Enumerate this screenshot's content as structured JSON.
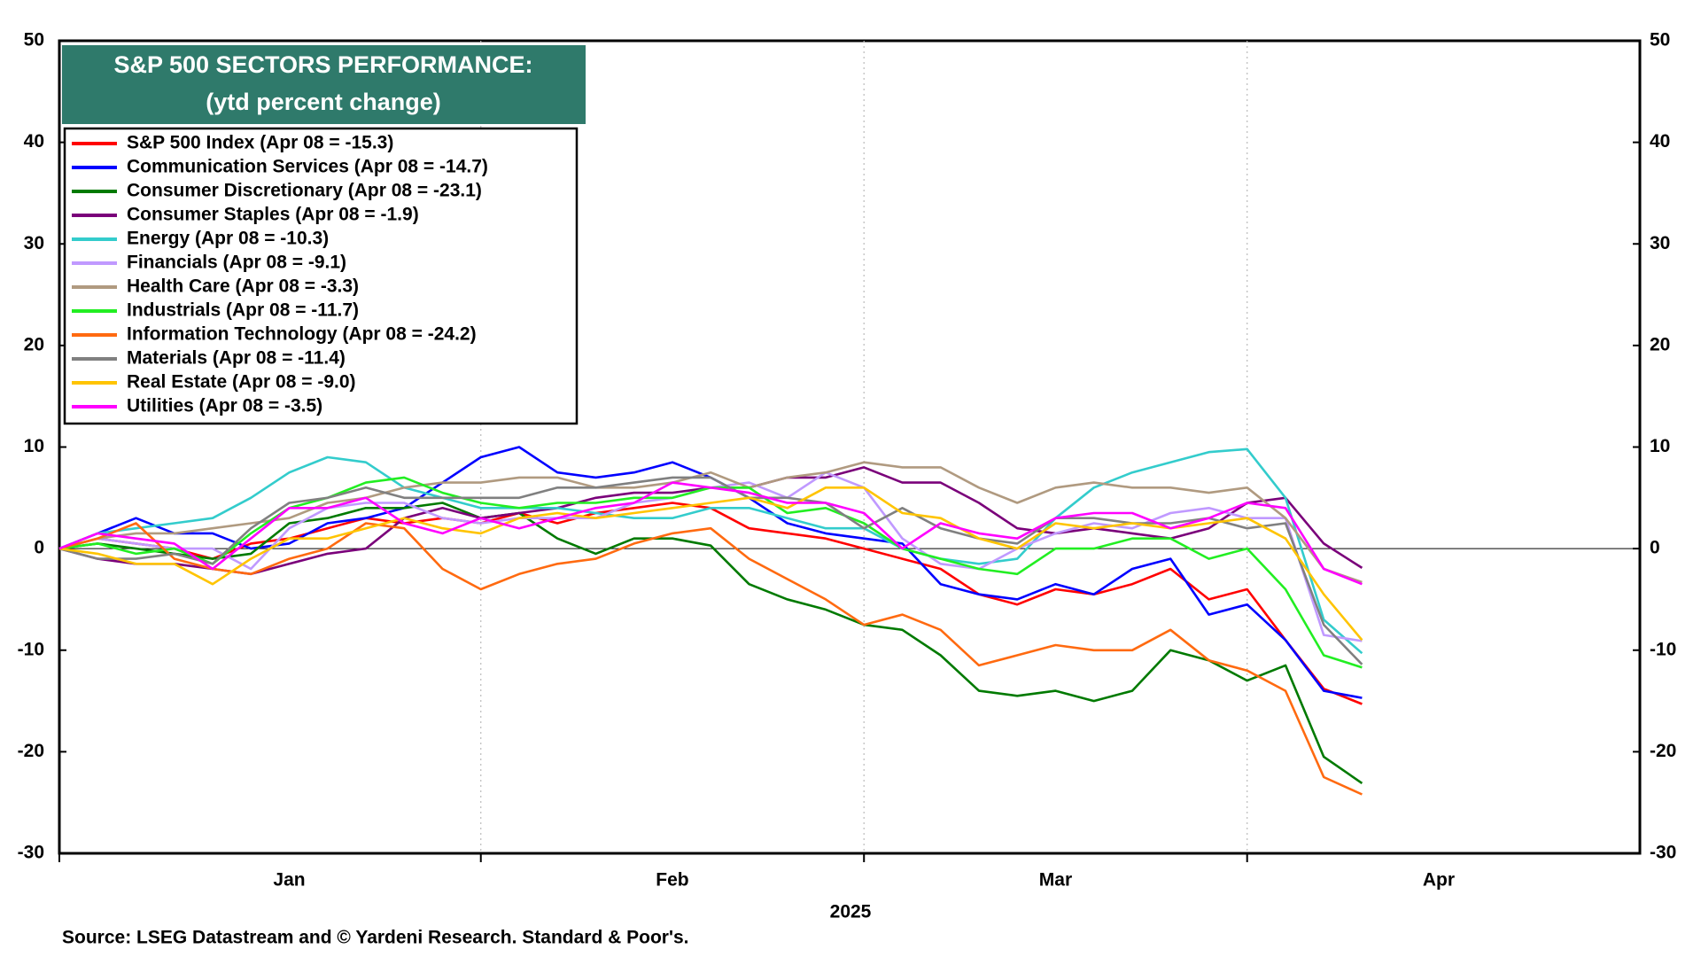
{
  "chart_data": {
    "type": "line",
    "title": "S&P 500 SECTORS PERFORMANCE:",
    "subtitle": "(ytd percent change)",
    "xlabel": "2025",
    "source": "Source: LSEG Datastream and © Yardeni Research. Standard & Poor's.",
    "categories": [
      null,
      null,
      null,
      null,
      null,
      null,
      "Jan",
      null,
      null,
      null,
      null,
      null,
      null,
      null,
      null,
      null,
      "Feb",
      null,
      null,
      null,
      null,
      null,
      null,
      null,
      null,
      null,
      "Mar",
      null,
      null,
      null,
      null,
      null,
      null,
      null,
      null,
      null,
      "Apr",
      null,
      null,
      null,
      null,
      null
    ],
    "ylim": [
      -30,
      50
    ],
    "yticks": [
      -30,
      -20,
      -10,
      0,
      10,
      20,
      30,
      40,
      50
    ],
    "grid": true,
    "series": [
      {
        "name": "S&P 500 Index (Apr 08 = -15.3)",
        "color": "#ff0000",
        "values": [
          0,
          1,
          0.5,
          0,
          -1,
          0.5,
          1,
          2,
          3,
          2.5,
          3,
          2.5,
          3.5,
          2.5,
          3.5,
          4,
          4.5,
          4,
          2,
          1.5,
          1,
          0,
          -1,
          -2,
          -4.5,
          -5.5,
          -4,
          -4.5,
          -3.5,
          -2,
          -5,
          -4,
          -9,
          -13.8,
          -15.3,
          null,
          null,
          null,
          null,
          null,
          null,
          null
        ]
      },
      {
        "name": "Communication Services (Apr 08 = -14.7)",
        "color": "#0000ff",
        "values": [
          0,
          1.5,
          3,
          1.5,
          1.5,
          0,
          0.5,
          2.5,
          3,
          4,
          6.5,
          9,
          10,
          7.5,
          7,
          7.5,
          8.5,
          7,
          5,
          2.5,
          1.5,
          1,
          0.5,
          -3.5,
          -4.5,
          -5,
          -3.5,
          -4.5,
          -2,
          -1,
          -6.5,
          -5.5,
          -9,
          -14,
          -14.7,
          null,
          null,
          null,
          null,
          null,
          null,
          null
        ]
      },
      {
        "name": "Consumer Discretionary (Apr 08 = -23.1)",
        "color": "#007a00",
        "values": [
          0,
          0.5,
          0,
          -0.5,
          -1,
          -0.5,
          2.5,
          3,
          4,
          4,
          4.5,
          3,
          3.5,
          1,
          -0.5,
          1,
          1,
          0.3,
          -3.5,
          -5,
          -6,
          -7.5,
          -8,
          -10.5,
          -14,
          -14.5,
          -14,
          -15,
          -14,
          -10,
          -11,
          -13,
          -11.5,
          -20.5,
          -23.1,
          null,
          null,
          null,
          null,
          null,
          null,
          null
        ]
      },
      {
        "name": "Consumer Staples (Apr 08 = -1.9)",
        "color": "#7a007a",
        "values": [
          0,
          -1,
          -1.5,
          -1.5,
          -2,
          -2.5,
          -1.5,
          -0.5,
          0,
          3,
          4,
          3,
          3.5,
          4,
          5,
          5.5,
          5.5,
          6,
          6,
          7,
          7,
          8,
          6.5,
          6.5,
          4.5,
          2,
          1.5,
          2,
          1.5,
          1,
          2,
          4.5,
          5,
          0.5,
          -1.9,
          null,
          null,
          null,
          null,
          null,
          null,
          null
        ]
      },
      {
        "name": "Energy (Apr 08 = -10.3)",
        "color": "#33cccc",
        "values": [
          0,
          1.5,
          2,
          2.5,
          3,
          5,
          7.5,
          9,
          8.5,
          6,
          5,
          4,
          4,
          4,
          3.5,
          3,
          3,
          4,
          4,
          3,
          2,
          2,
          0,
          -1,
          -1.5,
          -1,
          3,
          6,
          7.5,
          8.5,
          9.5,
          9.8,
          5,
          -7,
          -10.3,
          null,
          null,
          null,
          null,
          null,
          null,
          null
        ]
      },
      {
        "name": "Financials (Apr 08 = -9.1)",
        "color": "#c099ff",
        "values": [
          0,
          1,
          0.5,
          0,
          0,
          -2,
          2,
          4,
          4.5,
          4.5,
          3,
          2.5,
          3,
          3,
          3,
          4.5,
          5,
          6,
          6.5,
          5,
          7.5,
          6,
          1,
          -1.5,
          -2,
          0,
          1.5,
          2.5,
          2,
          3.5,
          4,
          3,
          3,
          -8.5,
          -9.1,
          null,
          null,
          null,
          null,
          null,
          null,
          null
        ]
      },
      {
        "name": "Health Care (Apr 08 = -3.3)",
        "color": "#b09a80",
        "values": [
          0,
          1,
          1.5,
          1.5,
          2,
          2.5,
          3,
          4.5,
          5,
          6,
          6.5,
          6.5,
          7,
          7,
          6,
          6,
          6.5,
          7.5,
          6,
          7,
          7.5,
          8.5,
          8,
          8,
          6,
          4.5,
          6,
          6.5,
          6,
          6,
          5.5,
          6,
          3,
          -2,
          -3.3,
          null,
          null,
          null,
          null,
          null,
          null,
          null
        ]
      },
      {
        "name": "Industrials (Apr 08 = -11.7)",
        "color": "#22ee22",
        "values": [
          0,
          0.5,
          -0.5,
          0,
          -1.5,
          1.5,
          4,
          5,
          6.5,
          7,
          5.5,
          4.5,
          4,
          4.5,
          4.5,
          5,
          5,
          6,
          6,
          3.5,
          4,
          2.5,
          0,
          -1,
          -2,
          -2.5,
          0,
          0,
          1,
          1,
          -1,
          0,
          -4,
          -10.5,
          -11.7,
          null,
          null,
          null,
          null,
          null,
          null,
          null
        ]
      },
      {
        "name": "Information Technology (Apr 08 = -24.2)",
        "color": "#ff6a10",
        "values": [
          0,
          1,
          2.5,
          -1,
          -2,
          -2.5,
          -1,
          0,
          2.5,
          2,
          -2,
          -4,
          -2.5,
          -1.5,
          -1,
          0.5,
          1.5,
          2,
          -1,
          -3,
          -5,
          -7.5,
          -6.5,
          -8,
          -11.5,
          -10.5,
          -9.5,
          -10,
          -10,
          -8,
          -11,
          -12,
          -14,
          -22.5,
          -24.2,
          null,
          null,
          null,
          null,
          null,
          null,
          null
        ]
      },
      {
        "name": "Materials (Apr 08 = -11.4)",
        "color": "#808080",
        "values": [
          0,
          -1,
          -1,
          -0.5,
          -1.5,
          2,
          4.5,
          5,
          6,
          5,
          5,
          5,
          5,
          6,
          6,
          6.5,
          7,
          7,
          5,
          5,
          4.5,
          2,
          4,
          2,
          1,
          0.5,
          3,
          3,
          2.5,
          2.5,
          3,
          2,
          2.5,
          -7.5,
          -11.4,
          null,
          null,
          null,
          null,
          null,
          null,
          null
        ]
      },
      {
        "name": "Real Estate (Apr 08 = -9.0)",
        "color": "#ffc400",
        "values": [
          0,
          -0.5,
          -1.5,
          -1.5,
          -3.5,
          -1,
          1,
          1,
          2,
          3,
          2,
          1.5,
          3,
          3.5,
          3,
          3.5,
          4,
          4.5,
          5,
          4,
          6,
          6,
          3.5,
          3,
          1,
          0,
          2.5,
          2,
          2.5,
          2,
          2.5,
          3,
          1,
          -4.5,
          -9.0,
          null,
          null,
          null,
          null,
          null,
          null,
          null
        ]
      },
      {
        "name": "Utilities (Apr 08 = -3.5)",
        "color": "#ff00ff",
        "values": [
          0,
          1.5,
          1,
          0.5,
          -2,
          1,
          4,
          4,
          5,
          2.5,
          1.5,
          3,
          2,
          3,
          4,
          4.5,
          6.5,
          6,
          5.5,
          4.5,
          4.5,
          3.5,
          0,
          2.5,
          1.5,
          1,
          3,
          3.5,
          3.5,
          2,
          3,
          4.5,
          4,
          -2,
          -3.5,
          null,
          null,
          null,
          null,
          null,
          null,
          null
        ]
      }
    ]
  }
}
